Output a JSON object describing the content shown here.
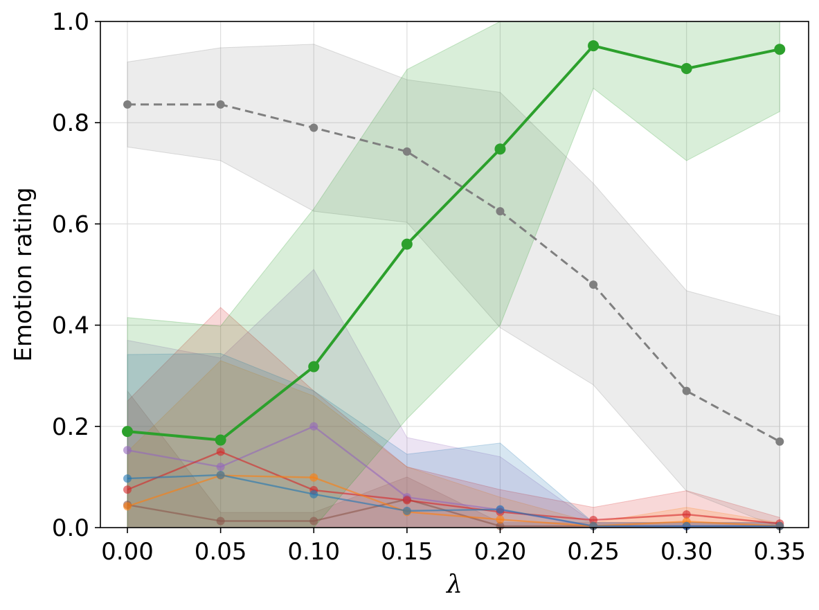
{
  "chart_data": {
    "type": "line",
    "title": "",
    "xlabel": "λ",
    "ylabel": "Emotion rating",
    "x": [
      0.0,
      0.05,
      0.1,
      0.15,
      0.2,
      0.25,
      0.3,
      0.35
    ],
    "x_tick_labels": [
      "0.00",
      "0.05",
      "0.10",
      "0.15",
      "0.20",
      "0.25",
      "0.30",
      "0.35"
    ],
    "y_tick_labels": [
      "0.0",
      "0.2",
      "0.4",
      "0.6",
      "0.8",
      "1.0"
    ],
    "xlim": [
      -0.0145,
      0.3655
    ],
    "ylim": [
      0,
      1
    ],
    "grid": true,
    "legend": "none",
    "series": [
      {
        "color": "#7f7f7f",
        "style": "dashed",
        "emphasis": "medium",
        "values": [
          0.836,
          0.836,
          0.79,
          0.743,
          0.625,
          0.48,
          0.27,
          0.17
        ],
        "upper": [
          0.92,
          0.948,
          0.955,
          0.885,
          0.86,
          0.68,
          0.468,
          0.418
        ],
        "lower": [
          0.752,
          0.725,
          0.625,
          0.603,
          0.395,
          0.282,
          0.072,
          0.0
        ]
      },
      {
        "color": "#2ca02c",
        "style": "solid",
        "emphasis": "strong",
        "values": [
          0.19,
          0.173,
          0.318,
          0.56,
          0.748,
          0.952,
          0.907,
          0.945
        ],
        "upper": [
          0.415,
          0.398,
          0.63,
          0.905,
          1.1,
          1.03,
          1.05,
          1.07
        ],
        "lower": [
          0.0,
          0.0,
          0.0,
          0.215,
          0.4,
          0.868,
          0.725,
          0.822
        ]
      },
      {
        "color": "#1f77b4",
        "style": "solid",
        "emphasis": "weak",
        "values": [
          0.097,
          0.104,
          0.066,
          0.033,
          0.036,
          0.003,
          0.003,
          0.003
        ],
        "upper": [
          0.342,
          0.344,
          0.27,
          0.145,
          0.167,
          0.01,
          0.01,
          0.01
        ],
        "lower": [
          0.0,
          0.0,
          0.0,
          0.0,
          0.0,
          0.0,
          0.0,
          0.0
        ]
      },
      {
        "color": "#ff7f0e",
        "style": "solid",
        "emphasis": "weak",
        "values": [
          0.042,
          0.103,
          0.099,
          0.031,
          0.016,
          0.003,
          0.012,
          0.003
        ],
        "upper": [
          0.15,
          0.33,
          0.26,
          0.12,
          0.06,
          0.01,
          0.04,
          0.01
        ],
        "lower": [
          0.0,
          0.0,
          0.0,
          0.0,
          0.0,
          0.0,
          0.0,
          0.0
        ]
      },
      {
        "color": "#d62728",
        "style": "solid",
        "emphasis": "weak",
        "values": [
          0.075,
          0.15,
          0.074,
          0.054,
          0.031,
          0.015,
          0.026,
          0.008
        ],
        "upper": [
          0.25,
          0.435,
          0.27,
          0.12,
          0.075,
          0.04,
          0.073,
          0.02
        ],
        "lower": [
          0.0,
          0.0,
          0.0,
          0.0,
          0.0,
          0.0,
          0.0,
          0.0
        ]
      },
      {
        "color": "#9467bd",
        "style": "solid",
        "emphasis": "weak",
        "values": [
          0.153,
          0.12,
          0.2,
          0.06,
          0.035,
          0.003,
          0.003,
          0.003
        ],
        "upper": [
          0.37,
          0.335,
          0.51,
          0.178,
          0.14,
          0.01,
          0.01,
          0.01
        ],
        "lower": [
          0.0,
          0.0,
          0.0,
          0.0,
          0.0,
          0.0,
          0.0,
          0.0
        ]
      },
      {
        "color": "#8c564b",
        "style": "solid",
        "emphasis": "weak",
        "values": [
          0.045,
          0.013,
          0.013,
          0.056,
          0.003,
          0.003,
          0.003,
          0.003
        ],
        "upper": [
          0.27,
          0.03,
          0.03,
          0.1,
          0.01,
          0.01,
          0.01,
          0.01
        ],
        "lower": [
          0.0,
          0.0,
          0.0,
          0.0,
          0.0,
          0.0,
          0.0,
          0.0
        ]
      }
    ]
  }
}
